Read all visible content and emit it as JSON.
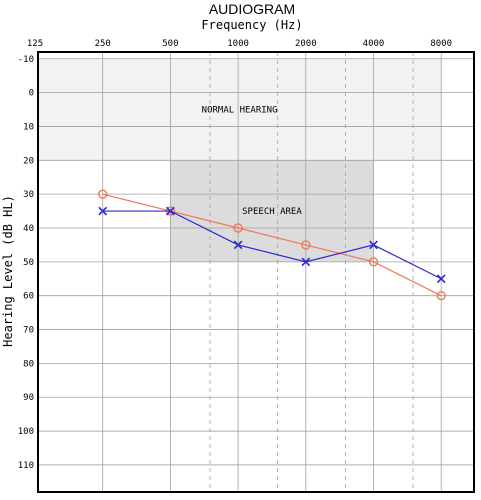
{
  "chart_data": {
    "type": "line",
    "title": "AUDIOGRAM",
    "xlabel": "Frequency (Hz)",
    "ylabel": "Hearing Level (dB HL)",
    "x_scale": "log2",
    "x_ticks": [
      "125",
      "250",
      "500",
      "1000",
      "2000",
      "4000",
      "8000"
    ],
    "x_tick_values": [
      125,
      250,
      500,
      1000,
      2000,
      4000,
      8000
    ],
    "x_minor_values": [
      750,
      1500,
      3000,
      6000
    ],
    "y_ticks": [
      -10,
      0,
      10,
      20,
      30,
      40,
      50,
      60,
      70,
      80,
      90,
      100,
      110
    ],
    "ylim": [
      -12,
      118
    ],
    "y_inverted": true,
    "grid": true,
    "regions": [
      {
        "label": "NORMAL HEARING",
        "x_from": 125,
        "x_to": 8000,
        "y_from": -10,
        "y_to": 20,
        "color": "#f2f2f2"
      },
      {
        "label": "SPEECH AREA",
        "x_from": 500,
        "x_to": 4000,
        "y_from": 20,
        "y_to": 50,
        "color": "#dcdcdc"
      }
    ],
    "series": [
      {
        "ear": "right",
        "marker": "circle",
        "color": "#f07858",
        "x": [
          250,
          500,
          1000,
          2000,
          4000,
          8000
        ],
        "values": [
          30,
          35,
          40,
          45,
          50,
          60
        ]
      },
      {
        "ear": "left",
        "marker": "cross",
        "color": "#2b2bd0",
        "x": [
          250,
          500,
          1000,
          2000,
          4000,
          8000
        ],
        "values": [
          35,
          35,
          45,
          50,
          45,
          55
        ]
      }
    ]
  }
}
